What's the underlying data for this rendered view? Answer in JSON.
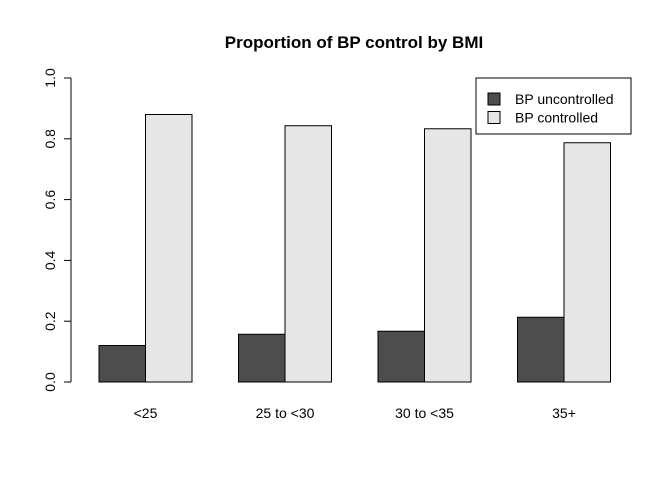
{
  "chart_data": {
    "type": "bar",
    "title": "Proportion of BP control by BMI",
    "xlabel": "",
    "ylabel": "",
    "categories": [
      "<25",
      "25 to <30",
      "30 to <35",
      "35+"
    ],
    "series": [
      {
        "name": "BP uncontrolled",
        "color": "#4d4d4d",
        "values": [
          0.12,
          0.157,
          0.167,
          0.213
        ]
      },
      {
        "name": "BP controlled",
        "color": "#e6e6e6",
        "values": [
          0.88,
          0.843,
          0.833,
          0.787
        ]
      }
    ],
    "ylim": [
      0,
      1
    ],
    "yticks": [
      "0.0",
      "0.2",
      "0.4",
      "0.6",
      "0.8",
      "1.0"
    ],
    "ytick_values": [
      0,
      0.2,
      0.4,
      0.6,
      0.8,
      1.0
    ],
    "grid": false,
    "legend_position": "top-right",
    "bar_mode": "grouped"
  }
}
